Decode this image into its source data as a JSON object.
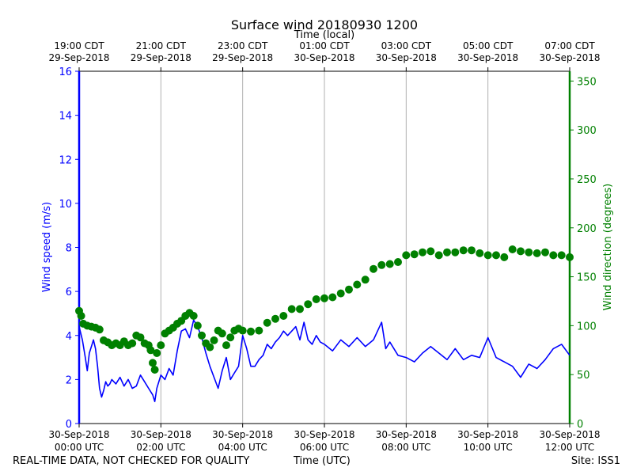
{
  "chart_data": {
    "type": "line",
    "title": "Surface wind 20180930 1200",
    "top_axis_title": "Time (local)",
    "xlabel": "Time (UTC)",
    "ylabel_left": "Wind speed (m/s)",
    "ylabel_right": "Wind direction (degrees)",
    "x_range_hours_utc": [
      0,
      12
    ],
    "ylim_left": [
      0,
      16
    ],
    "ylim_right": [
      0,
      360
    ],
    "yticks_left": [
      "0",
      "2",
      "4",
      "6",
      "8",
      "10",
      "12",
      "14",
      "16"
    ],
    "yticks_right": [
      "0",
      "50",
      "100",
      "150",
      "200",
      "250",
      "300",
      "350"
    ],
    "xticks_bottom": [
      {
        "hour": 0,
        "date": "30-Sep-2018",
        "time": "00:00 UTC"
      },
      {
        "hour": 2,
        "date": "30-Sep-2018",
        "time": "02:00 UTC"
      },
      {
        "hour": 4,
        "date": "30-Sep-2018",
        "time": "04:00 UTC"
      },
      {
        "hour": 6,
        "date": "30-Sep-2018",
        "time": "06:00 UTC"
      },
      {
        "hour": 8,
        "date": "30-Sep-2018",
        "time": "08:00 UTC"
      },
      {
        "hour": 10,
        "date": "30-Sep-2018",
        "time": "10:00 UTC"
      },
      {
        "hour": 12,
        "date": "30-Sep-2018",
        "time": "12:00 UTC"
      }
    ],
    "xticks_top": [
      {
        "hour": 0,
        "time": "19:00 CDT",
        "date": "29-Sep-2018"
      },
      {
        "hour": 2,
        "time": "21:00 CDT",
        "date": "29-Sep-2018"
      },
      {
        "hour": 4,
        "time": "23:00 CDT",
        "date": "29-Sep-2018"
      },
      {
        "hour": 6,
        "time": "01:00 CDT",
        "date": "30-Sep-2018"
      },
      {
        "hour": 8,
        "time": "03:00 CDT",
        "date": "30-Sep-2018"
      },
      {
        "hour": 10,
        "time": "05:00 CDT",
        "date": "30-Sep-2018"
      },
      {
        "hour": 12,
        "time": "07:00 CDT",
        "date": "30-Sep-2018"
      }
    ],
    "grid_vertical_hours": [
      2,
      4,
      6,
      8,
      10
    ],
    "series": [
      {
        "name": "Wind speed",
        "axis": "left",
        "style": "line",
        "color": "#0000ff",
        "x": [
          0,
          0.08,
          0.15,
          0.2,
          0.25,
          0.3,
          0.35,
          0.4,
          0.45,
          0.5,
          0.55,
          0.6,
          0.65,
          0.7,
          0.75,
          0.8,
          0.9,
          1.0,
          1.1,
          1.2,
          1.3,
          1.4,
          1.5,
          1.6,
          1.7,
          1.8,
          1.85,
          1.9,
          2.0,
          2.1,
          2.2,
          2.3,
          2.4,
          2.5,
          2.6,
          2.7,
          2.8,
          2.9,
          3.0,
          3.1,
          3.2,
          3.3,
          3.4,
          3.5,
          3.6,
          3.7,
          3.8,
          3.9,
          4.0,
          4.1,
          4.2,
          4.3,
          4.4,
          4.5,
          4.6,
          4.7,
          4.8,
          4.9,
          5.0,
          5.1,
          5.2,
          5.3,
          5.4,
          5.5,
          5.6,
          5.7,
          5.8,
          5.9,
          6.0,
          6.2,
          6.4,
          6.6,
          6.8,
          7.0,
          7.2,
          7.4,
          7.5,
          7.6,
          7.8,
          8.0,
          8.2,
          8.4,
          8.6,
          8.8,
          9.0,
          9.2,
          9.4,
          9.6,
          9.8,
          10.0,
          10.2,
          10.4,
          10.6,
          10.8,
          11.0,
          11.2,
          11.4,
          11.6,
          11.8,
          12.0
        ],
        "values": [
          4.4,
          3.8,
          3.0,
          2.4,
          3.2,
          3.5,
          3.8,
          3.4,
          2.6,
          1.6,
          1.2,
          1.5,
          1.9,
          1.7,
          1.8,
          2.0,
          1.8,
          2.1,
          1.7,
          2.0,
          1.6,
          1.7,
          2.2,
          1.9,
          1.6,
          1.3,
          1.0,
          1.6,
          2.2,
          2.0,
          2.5,
          2.2,
          3.3,
          4.2,
          4.3,
          3.9,
          4.7,
          4.4,
          3.9,
          3.2,
          2.6,
          2.1,
          1.6,
          2.4,
          3.0,
          2.0,
          2.3,
          2.6,
          4.0,
          3.4,
          2.6,
          2.6,
          2.9,
          3.1,
          3.6,
          3.4,
          3.7,
          3.9,
          4.2,
          4.0,
          4.2,
          4.4,
          3.8,
          4.6,
          3.8,
          3.6,
          4.0,
          3.7,
          3.6,
          3.3,
          3.8,
          3.5,
          3.9,
          3.5,
          3.8,
          4.6,
          3.4,
          3.7,
          3.1,
          3.0,
          2.8,
          3.2,
          3.5,
          3.2,
          2.9,
          3.4,
          2.9,
          3.1,
          3.0,
          3.9,
          3.0,
          2.8,
          2.6,
          2.1,
          2.7,
          2.5,
          2.9,
          3.4,
          3.6,
          3.1
        ]
      },
      {
        "name": "Wind direction",
        "axis": "right",
        "style": "markers",
        "color": "#008000",
        "x": [
          0,
          0.05,
          0.1,
          0.2,
          0.3,
          0.4,
          0.5,
          0.6,
          0.7,
          0.8,
          0.9,
          1.0,
          1.1,
          1.2,
          1.3,
          1.4,
          1.5,
          1.6,
          1.7,
          1.75,
          1.8,
          1.85,
          1.9,
          2.0,
          2.1,
          2.2,
          2.3,
          2.4,
          2.5,
          2.6,
          2.7,
          2.8,
          2.9,
          3.0,
          3.1,
          3.2,
          3.3,
          3.4,
          3.5,
          3.6,
          3.7,
          3.8,
          3.9,
          4.0,
          4.2,
          4.4,
          4.6,
          4.8,
          5.0,
          5.2,
          5.4,
          5.6,
          5.8,
          6.0,
          6.2,
          6.4,
          6.6,
          6.8,
          7.0,
          7.2,
          7.4,
          7.6,
          7.8,
          8.0,
          8.2,
          8.4,
          8.6,
          8.8,
          9.0,
          9.2,
          9.4,
          9.6,
          9.8,
          10.0,
          10.2,
          10.4,
          10.6,
          10.8,
          11.0,
          11.2,
          11.4,
          11.6,
          11.8,
          12.0
        ],
        "values": [
          115,
          110,
          102,
          100,
          99,
          98,
          96,
          85,
          83,
          80,
          82,
          80,
          84,
          80,
          82,
          90,
          88,
          82,
          80,
          75,
          62,
          55,
          72,
          80,
          92,
          95,
          98,
          102,
          105,
          110,
          113,
          110,
          100,
          90,
          82,
          78,
          85,
          95,
          92,
          80,
          88,
          95,
          97,
          95,
          94,
          95,
          103,
          107,
          110,
          117,
          117,
          122,
          127,
          128,
          129,
          133,
          137,
          142,
          147,
          158,
          162,
          163,
          165,
          172,
          173,
          175,
          176,
          172,
          175,
          175,
          177,
          177,
          174,
          172,
          172,
          170,
          178,
          176,
          175,
          174,
          175,
          172,
          172,
          170
        ]
      }
    ]
  },
  "footer": {
    "disclaimer": "REAL-TIME DATA, NOT CHECKED FOR QUALITY",
    "xlabel": "Time (UTC)",
    "site": "Site: ISS1"
  }
}
